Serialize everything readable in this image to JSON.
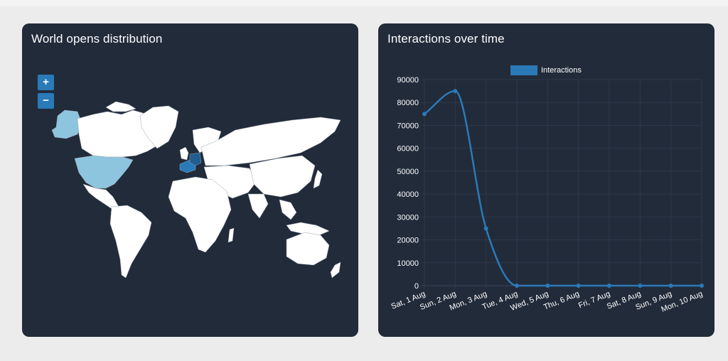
{
  "map_panel": {
    "title": "World opens distribution",
    "zoom_in_label": "+",
    "zoom_out_label": "−",
    "colors": {
      "land": "#ffffff",
      "usa": "#8ec5de",
      "alaska": "#8ec5de",
      "western_europe": "#2a7ab8",
      "germany": "#1f5e8f"
    }
  },
  "chart_panel": {
    "title": "Interactions over time"
  },
  "chart_data": {
    "type": "line",
    "title": "",
    "xlabel": "",
    "ylabel": "",
    "categories": [
      "Sat, 1 Aug",
      "Sun, 2 Aug",
      "Mon, 3 Aug",
      "Tue, 4 Aug",
      "Wed, 5 Aug",
      "Thu, 6 Aug",
      "Fri, 7 Aug",
      "Sat, 8 Aug",
      "Sun, 9 Aug",
      "Mon, 10 Aug"
    ],
    "y_ticks": [
      "0",
      "10000",
      "20000",
      "30000",
      "40000",
      "50000",
      "60000",
      "70000",
      "80000",
      "90000"
    ],
    "ylim": [
      0,
      90000
    ],
    "series": [
      {
        "name": "Interactions",
        "color": "#2a7ab8",
        "values": [
          75000,
          85000,
          25000,
          0,
          0,
          0,
          0,
          0,
          0,
          0
        ]
      }
    ],
    "legend_position": "top-center",
    "grid": true
  }
}
